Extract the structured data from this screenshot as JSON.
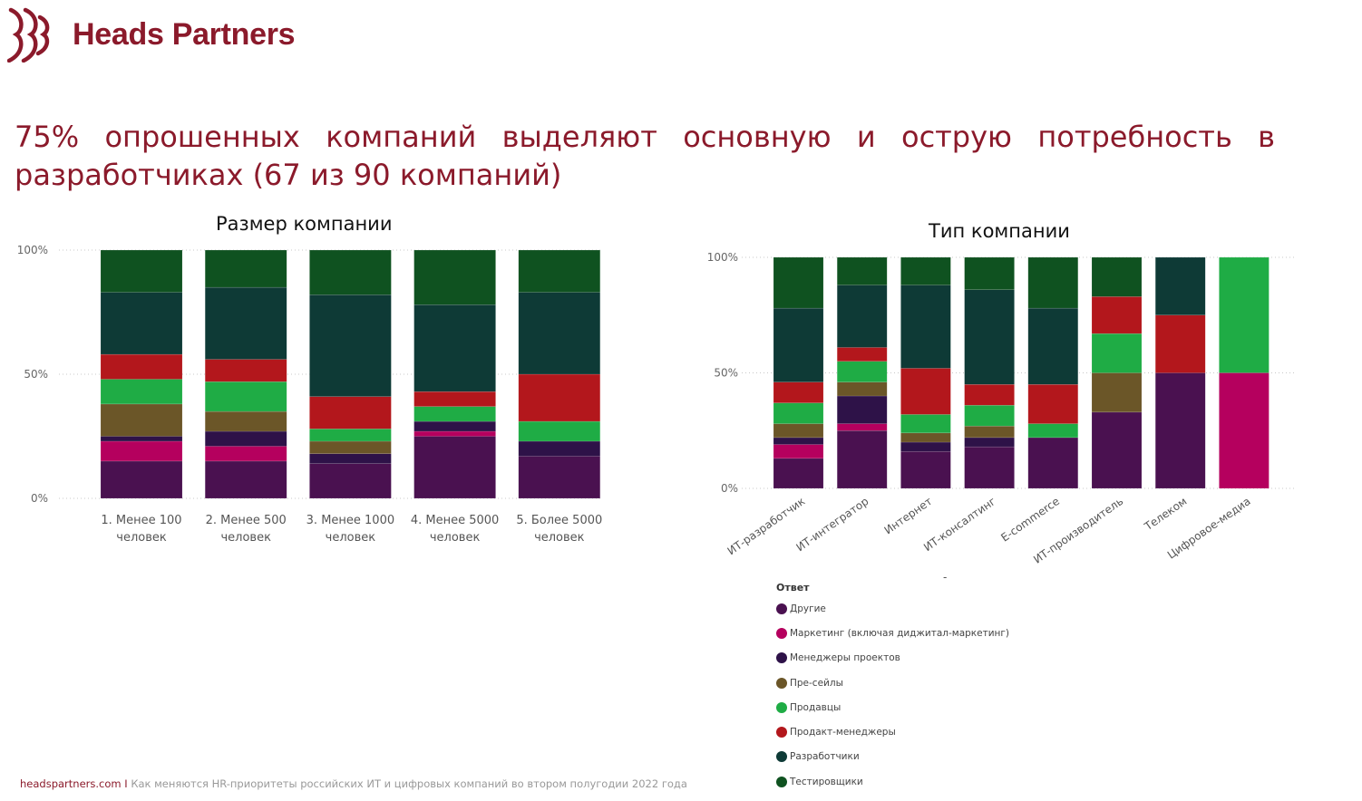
{
  "brand": {
    "name": "Heads Partners",
    "color": "#8b1a2b",
    "logo_icon": "heads-partners-logo-icon"
  },
  "headline": "75% опрошенных компаний выделяют основную и острую потребность в разработчиках (67 из 90 компаний)",
  "footer": {
    "site": "headspartners.com",
    "separator": "I",
    "text": "Как меняются HR-приоритеты российских ИТ и цифровых компаний во втором полугодии 2022 года"
  },
  "legend": {
    "title": "Ответ",
    "items": [
      {
        "label": "Другие",
        "color": "#4a1150"
      },
      {
        "label": "Маркетинг (включая диджитал-маркетинг)",
        "color": "#b5005e"
      },
      {
        "label": "Менеджеры проектов",
        "color": "#2e1248"
      },
      {
        "label": "Пре-сейлы",
        "color": "#6b5628"
      },
      {
        "label": "Продавцы",
        "color": "#1fac45"
      },
      {
        "label": "Продакт-менеджеры",
        "color": "#b3171c"
      },
      {
        "label": "Разработчики",
        "color": "#0e3a36"
      },
      {
        "label": "Тестировщики",
        "color": "#0f5220"
      }
    ]
  },
  "other_text": {
    "dash": "-"
  },
  "chart_data": [
    {
      "type": "bar",
      "stacked": true,
      "title": "Размер компании",
      "ylim": [
        0,
        100
      ],
      "yticks": [
        "0%",
        "50%",
        "100%"
      ],
      "grid": true,
      "categories": [
        [
          "1. Менее 100",
          "человек"
        ],
        [
          "2. Менее 500",
          "человек"
        ],
        [
          "3. Менее 1000",
          "человек"
        ],
        [
          "4. Менее 5000",
          "человек"
        ],
        [
          "5. Более 5000",
          "человек"
        ]
      ],
      "series": [
        {
          "name": "Другие",
          "values": [
            15,
            15,
            14,
            25,
            17
          ]
        },
        {
          "name": "Маркетинг (включая диджитал-маркетинг)",
          "values": [
            8,
            6,
            0,
            2,
            0
          ]
        },
        {
          "name": "Менеджеры проектов",
          "values": [
            2,
            6,
            4,
            4,
            6
          ]
        },
        {
          "name": "Пре-сейлы",
          "values": [
            13,
            8,
            5,
            0,
            0
          ]
        },
        {
          "name": "Продавцы",
          "values": [
            10,
            12,
            5,
            6,
            8
          ]
        },
        {
          "name": "Продакт-менеджеры",
          "values": [
            10,
            9,
            13,
            6,
            19
          ]
        },
        {
          "name": "Разработчики",
          "values": [
            25,
            29,
            41,
            35,
            33
          ]
        },
        {
          "name": "Тестировщики",
          "values": [
            17,
            15,
            18,
            22,
            17
          ]
        }
      ]
    },
    {
      "type": "bar",
      "stacked": true,
      "title": "Тип компании",
      "ylim": [
        0,
        100
      ],
      "yticks": [
        "0%",
        "50%",
        "100%"
      ],
      "grid": true,
      "categories": [
        "ИТ-разработчик",
        "ИТ-интегратор",
        "Интернет",
        "ИТ-консалтинг",
        "E-commerce",
        "ИТ-производитель",
        "Телеком",
        "Цифровое-медиа"
      ],
      "series": [
        {
          "name": "Другие",
          "values": [
            13,
            25,
            16,
            18,
            22,
            33,
            50,
            0
          ]
        },
        {
          "name": "Маркетинг (включая диджитал-маркетинг)",
          "values": [
            6,
            3,
            0,
            0,
            0,
            0,
            0,
            50
          ]
        },
        {
          "name": "Менеджеры проектов",
          "values": [
            3,
            12,
            4,
            4,
            0,
            0,
            0,
            0
          ]
        },
        {
          "name": "Пре-сейлы",
          "values": [
            6,
            6,
            4,
            5,
            0,
            17,
            0,
            0
          ]
        },
        {
          "name": "Продавцы",
          "values": [
            9,
            9,
            8,
            9,
            6,
            17,
            0,
            50
          ]
        },
        {
          "name": "Продакт-менеджеры",
          "values": [
            9,
            6,
            20,
            9,
            17,
            16,
            25,
            0
          ]
        },
        {
          "name": "Разработчики",
          "values": [
            32,
            27,
            36,
            41,
            33,
            0,
            25,
            0
          ]
        },
        {
          "name": "Тестировщики",
          "values": [
            22,
            12,
            12,
            14,
            22,
            17,
            0,
            0
          ]
        }
      ]
    }
  ]
}
